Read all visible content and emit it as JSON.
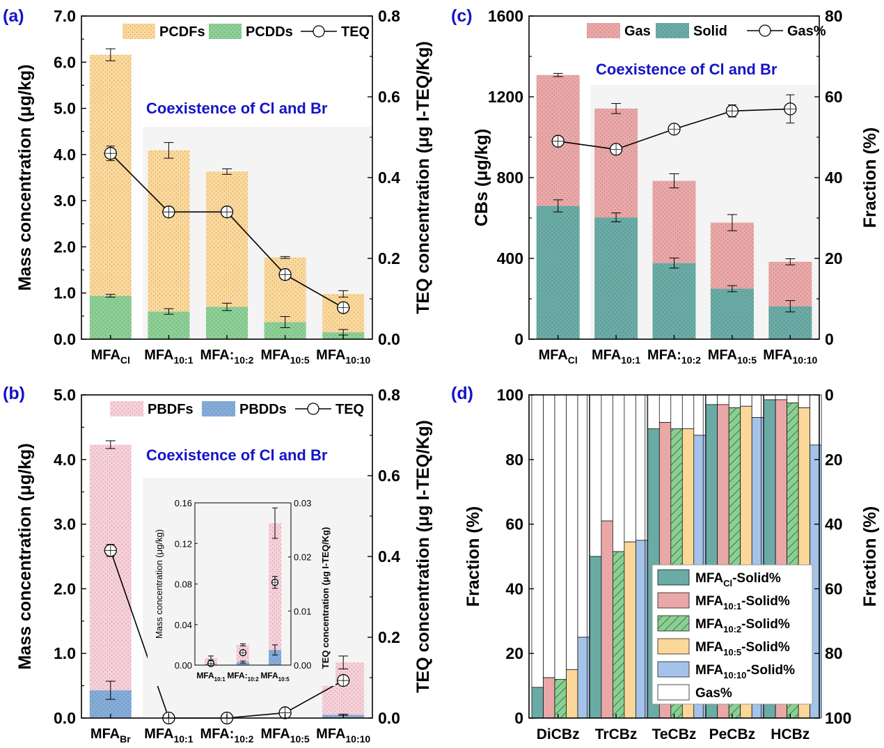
{
  "colors": {
    "pcdfs": "#fbd79a",
    "pcdds": "#8ccf95",
    "pbdfs": "#f7cfd8",
    "pbdds": "#84acd8",
    "gas": "#eaa7a7",
    "solid": "#6aaba5",
    "teq": "#000000",
    "shade": "#f4f4f4",
    "annotation": "#1414c8",
    "d_series": [
      "#6aaba5",
      "#eaa7a7",
      "#8ccf95",
      "#fbd79a",
      "#a5c3e8"
    ]
  },
  "chart_data": [
    {
      "id": "a",
      "panel_label": "(a)",
      "type": "bar",
      "stacked": true,
      "categories": [
        "MFA_Cl",
        "MFA_10:1",
        "MFA:_10:2",
        "MFA_10:5",
        "MFA_10:10"
      ],
      "category_labels": [
        {
          "main": "MFA",
          "sub": "Cl"
        },
        {
          "main": "MFA",
          "sub": "10:1"
        },
        {
          "main": "MFA:",
          "sub": "10:2"
        },
        {
          "main": "MFA",
          "sub": "10:5"
        },
        {
          "main": "MFA",
          "sub": "10:10"
        }
      ],
      "series": [
        {
          "name": "PCDDs",
          "values": [
            0.94,
            0.6,
            0.7,
            0.37,
            0.15
          ],
          "errors": [
            0.03,
            0.06,
            0.08,
            0.12,
            0.06
          ]
        },
        {
          "name": "PCDFs",
          "values": [
            5.22,
            3.49,
            2.93,
            1.4,
            0.83
          ],
          "errors": [
            0.13,
            0.17,
            0.06,
            0.02,
            0.07
          ]
        }
      ],
      "line": {
        "name": "TEQ",
        "axis": "right",
        "values": [
          0.46,
          0.315,
          0.315,
          0.16,
          0.078
        ],
        "errors": [
          0.018,
          0.012,
          0.012,
          0.012,
          0.008
        ]
      },
      "ylabel": "Mass concentration (μg/kg)",
      "ylabel_right": "TEQ concentration (μg I-TEQ/Kg)",
      "ylim": [
        0,
        7
      ],
      "yticks": [
        "0.0",
        "1.0",
        "2.0",
        "3.0",
        "4.0",
        "5.0",
        "6.0",
        "7.0"
      ],
      "ylim_right": [
        0,
        0.8
      ],
      "yticks_right": [
        "0.0",
        "0.2",
        "0.4",
        "0.6",
        "0.8"
      ],
      "annotation": "Coexistence of Cl and Br",
      "legend": {
        "position": "top-right",
        "entries": [
          "PCDFs",
          "PCDDs",
          "TEQ"
        ]
      }
    },
    {
      "id": "b",
      "panel_label": "(b)",
      "type": "bar",
      "stacked": true,
      "categories": [
        "MFA_Br",
        "MFA_10:1",
        "MFA:_10:2",
        "MFA_10:5",
        "MFA_10:10"
      ],
      "category_labels": [
        {
          "main": "MFA",
          "sub": "Br"
        },
        {
          "main": "MFA",
          "sub": "10:1"
        },
        {
          "main": "MFA:",
          "sub": "10:2"
        },
        {
          "main": "MFA",
          "sub": "10:5"
        },
        {
          "main": "MFA",
          "sub": "10:10"
        }
      ],
      "series": [
        {
          "name": "PBDDs",
          "values": [
            0.43,
            0,
            0,
            0,
            0.05
          ],
          "errors": [
            0.14,
            0,
            0,
            0,
            0.01
          ]
        },
        {
          "name": "PBDFs",
          "values": [
            3.8,
            0,
            0,
            0,
            0.81
          ],
          "errors": [
            0.06,
            0,
            0,
            0,
            0.1
          ]
        }
      ],
      "line": {
        "name": "TEQ",
        "axis": "right",
        "values": [
          0.415,
          0.0,
          0.0,
          0.013,
          0.093
        ],
        "errors": [
          0.015,
          0,
          0,
          0.002,
          0.006
        ]
      },
      "ylabel": "Mass concentration (μg/kg)",
      "ylabel_right": "TEQ concentration (μg I-TEQ/Kg)",
      "ylim": [
        0,
        5
      ],
      "yticks": [
        "0.0",
        "1.0",
        "2.0",
        "3.0",
        "4.0",
        "5.0"
      ],
      "ylim_right": [
        0,
        0.8
      ],
      "yticks_right": [
        "0.0",
        "0.2",
        "0.4",
        "0.6",
        "0.8"
      ],
      "annotation": "Coexistence of Cl and Br",
      "legend": {
        "position": "top-right",
        "entries": [
          "PBDFs",
          "PBDDs",
          "TEQ"
        ]
      },
      "inset": {
        "categories": [
          "MFA_10:1",
          "MFA:_10:2",
          "MFA_10:5"
        ],
        "category_labels": [
          {
            "main": "MFA",
            "sub": "10:1"
          },
          {
            "main": "MFA:",
            "sub": "10:2"
          },
          {
            "main": "MFA",
            "sub": "10:5"
          }
        ],
        "series": [
          {
            "name": "PBDDs",
            "values": [
              0.001,
              0.003,
              0.015
            ],
            "errors": [
              0.001,
              0.001,
              0.005
            ]
          },
          {
            "name": "PBDFs",
            "values": [
              0.006,
              0.017,
              0.125
            ],
            "errors": [
              0.002,
              0.001,
              0.015
            ]
          }
        ],
        "line": {
          "name": "TEQ",
          "values": [
            0.0003,
            0.0023,
            0.0153
          ],
          "errors": [
            0.0002,
            0.0003,
            0.0011
          ]
        },
        "ylabel": "Mass concentration (μg/kg)",
        "ylabel_right": "TEQ concentration (μg I-TEQ/Kg)",
        "ylim": [
          0,
          0.16
        ],
        "yticks": [
          "0.00",
          "0.04",
          "0.08",
          "0.12",
          "0.16"
        ],
        "ylim_right": [
          0,
          0.03
        ],
        "yticks_right": [
          "0.00",
          "0.01",
          "0.02",
          "0.03"
        ]
      }
    },
    {
      "id": "c",
      "panel_label": "(c)",
      "type": "bar",
      "stacked": true,
      "categories": [
        "MFA_Cl",
        "MFA_10:1",
        "MFA:_10:2",
        "MFA_10:5",
        "MFA_10:10"
      ],
      "category_labels": [
        {
          "main": "MFA",
          "sub": "Cl"
        },
        {
          "main": "MFA",
          "sub": "10:1"
        },
        {
          "main": "MFA:",
          "sub": "10:2"
        },
        {
          "main": "MFA",
          "sub": "10:5"
        },
        {
          "main": "MFA",
          "sub": "10:10"
        }
      ],
      "series": [
        {
          "name": "Solid",
          "values": [
            660,
            603,
            377,
            250,
            163
          ],
          "errors": [
            30,
            22,
            25,
            15,
            28
          ]
        },
        {
          "name": "Gas",
          "values": [
            648,
            539,
            407,
            327,
            220
          ],
          "errors": [
            8,
            25,
            35,
            40,
            15
          ]
        }
      ],
      "line": {
        "name": "Gas%",
        "axis": "right",
        "values": [
          49,
          47,
          52,
          56.5,
          57
        ],
        "errors": [
          0.8,
          0.8,
          0.8,
          1.5,
          3.5
        ]
      },
      "ylabel": "CBs (μg/kg)",
      "ylabel_right": "Fraction (%)",
      "ylim": [
        0,
        1600
      ],
      "yticks": [
        "0",
        "400",
        "800",
        "1200",
        "1600"
      ],
      "ylim_right": [
        0,
        80
      ],
      "yticks_right": [
        "0",
        "20",
        "40",
        "60",
        "80"
      ],
      "annotation": "Coexistence of Cl and Br",
      "legend": {
        "position": "top-right",
        "entries": [
          "Gas",
          "Solid",
          "Gas%"
        ]
      }
    },
    {
      "id": "d",
      "panel_label": "(d)",
      "type": "bar",
      "stacked": true,
      "categories": [
        "DiCBz",
        "TrCBz",
        "TeCBz",
        "PeCBz",
        "HCBz"
      ],
      "series": [
        {
          "name": "MFA_Cl-Solid%",
          "main": "MFA",
          "sub": "Cl",
          "suffix": "-Solid%",
          "values": [
            9.5,
            50,
            89.5,
            97,
            98.5
          ]
        },
        {
          "name": "MFA_10:1-Solid%",
          "main": "MFA",
          "sub": "10:1",
          "suffix": "-Solid%",
          "values": [
            12.5,
            61,
            91.5,
            97,
            98.5
          ]
        },
        {
          "name": "MFA_10:2-Solid%",
          "main": "MFA",
          "sub": "10:2",
          "suffix": "-Solid%",
          "values": [
            12,
            51.5,
            89.5,
            96,
            97.5
          ]
        },
        {
          "name": "MFA_10:5-Solid%",
          "main": "MFA",
          "sub": "10:5",
          "suffix": "-Solid%",
          "values": [
            15,
            54.5,
            89.5,
            96.5,
            96
          ]
        },
        {
          "name": "MFA_10:10-Solid%",
          "main": "MFA",
          "sub": "10:10",
          "suffix": "-Solid%",
          "values": [
            25,
            55,
            87.5,
            93,
            84.5
          ]
        }
      ],
      "remainder_name": "Gas%",
      "ylabel": "Fraction (%)",
      "ylabel_right": "Fraction (%)",
      "ylim": [
        0,
        100
      ],
      "yticks": [
        "0",
        "20",
        "40",
        "60",
        "80",
        "100"
      ],
      "ylim_right": [
        100,
        0
      ],
      "yticks_right": [
        "100",
        "80",
        "60",
        "40",
        "20",
        "0"
      ],
      "legend": {
        "position": "bottom-right",
        "entries": [
          "MFA_Cl-Solid%",
          "MFA_10:1-Solid%",
          "MFA_10:2-Solid%",
          "MFA_10:5-Solid%",
          "MFA_10:10-Solid%",
          "Gas%"
        ]
      }
    }
  ]
}
